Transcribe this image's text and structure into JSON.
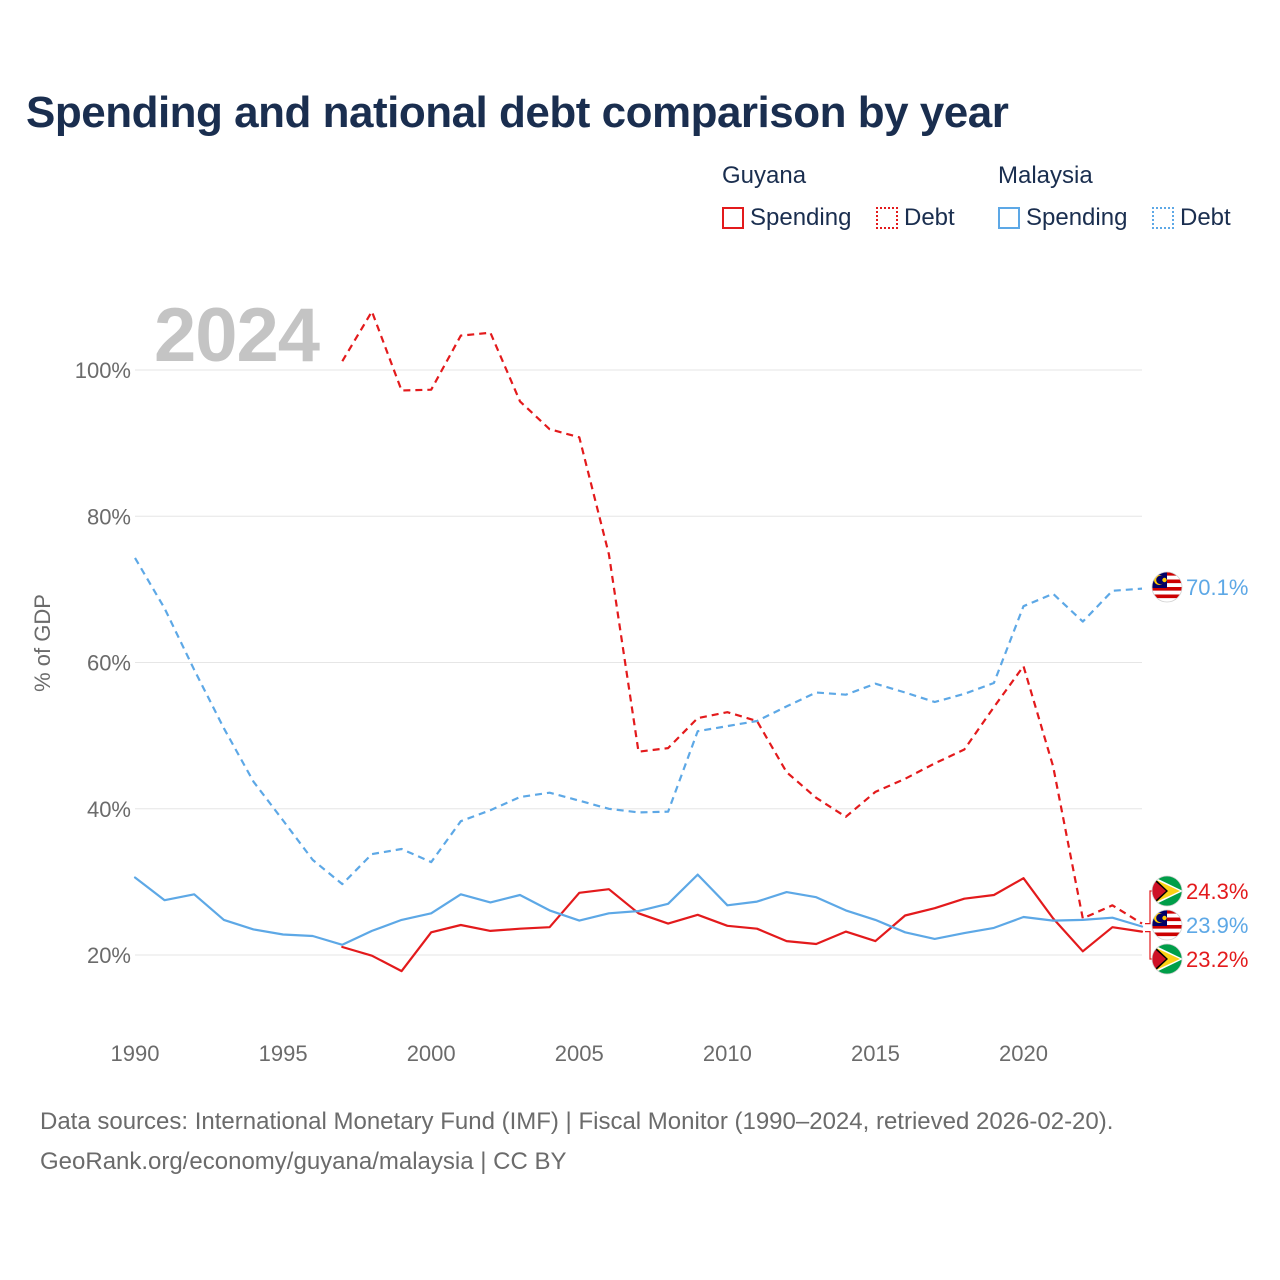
{
  "title": "Spending and national debt comparison by year",
  "year_label": "2024",
  "legend": {
    "guyana": {
      "title": "Guyana",
      "spending": "Spending",
      "debt": "Debt"
    },
    "malaysia": {
      "title": "Malaysia",
      "spending": "Spending",
      "debt": "Debt"
    }
  },
  "colors": {
    "guyana": "#e31a1c",
    "malaysia": "#5da8e6",
    "grid": "#e6e6e6"
  },
  "footer": {
    "line1": "Data sources: International Monetary Fund (IMF) | Fiscal Monitor (1990–2024, retrieved 2026-02-20).",
    "line2": "GeoRank.org/economy/guyana/malaysia | CC BY"
  },
  "chart_data": {
    "type": "line",
    "ylabel": "% of GDP",
    "xlabel": "",
    "xlim": [
      1990,
      2024
    ],
    "ylim": [
      10,
      110
    ],
    "yticks": [
      20,
      40,
      60,
      80,
      100
    ],
    "ytick_labels": [
      "20%",
      "40%",
      "60%",
      "80%",
      "100%"
    ],
    "xticks": [
      1990,
      1995,
      2000,
      2005,
      2010,
      2015,
      2020
    ],
    "xtick_labels": [
      "1990",
      "1995",
      "2000",
      "2005",
      "2010",
      "2015",
      "2020"
    ],
    "grid": true,
    "series": [
      {
        "name": "Guyana Spending",
        "country": "guyana",
        "style": "solid",
        "x": [
          1997,
          1998,
          1999,
          2000,
          2001,
          2002,
          2003,
          2004,
          2005,
          2006,
          2007,
          2008,
          2009,
          2010,
          2011,
          2012,
          2013,
          2014,
          2015,
          2016,
          2017,
          2018,
          2019,
          2020,
          2021,
          2022,
          2023,
          2024
        ],
        "values": [
          21.1,
          19.9,
          17.8,
          23.1,
          24.1,
          23.3,
          23.6,
          23.8,
          28.5,
          29.0,
          25.7,
          24.3,
          25.5,
          24.0,
          23.6,
          21.9,
          21.5,
          23.2,
          21.9,
          25.4,
          26.4,
          27.7,
          28.2,
          30.5,
          25.0,
          20.5,
          23.8,
          23.2
        ],
        "end_label": "23.2%"
      },
      {
        "name": "Guyana Debt",
        "country": "guyana",
        "style": "dashed",
        "x": [
          1997,
          1998,
          1999,
          2000,
          2001,
          2002,
          2003,
          2004,
          2005,
          2006,
          2007,
          2008,
          2009,
          2010,
          2011,
          2012,
          2013,
          2014,
          2015,
          2016,
          2017,
          2018,
          2019,
          2020,
          2021,
          2022,
          2023,
          2024
        ],
        "values": [
          101.2,
          108.0,
          97.2,
          97.3,
          104.7,
          105.1,
          95.7,
          91.9,
          90.8,
          74.8,
          47.8,
          48.3,
          52.4,
          53.2,
          52.0,
          45.0,
          41.5,
          38.9,
          42.3,
          44.1,
          46.2,
          48.1,
          53.9,
          59.5,
          45.8,
          25.0,
          26.8,
          24.3
        ],
        "end_label": "24.3%"
      },
      {
        "name": "Malaysia Spending",
        "country": "malaysia",
        "style": "solid",
        "x": [
          1990,
          1991,
          1992,
          1993,
          1994,
          1995,
          1996,
          1997,
          1998,
          1999,
          2000,
          2001,
          2002,
          2003,
          2004,
          2005,
          2006,
          2007,
          2008,
          2009,
          2010,
          2011,
          2012,
          2013,
          2014,
          2015,
          2016,
          2017,
          2018,
          2019,
          2020,
          2021,
          2022,
          2023,
          2024
        ],
        "values": [
          30.6,
          27.5,
          28.3,
          24.8,
          23.5,
          22.8,
          22.6,
          21.4,
          23.3,
          24.8,
          25.7,
          28.3,
          27.2,
          28.2,
          26.1,
          24.7,
          25.7,
          26.0,
          27.0,
          31.0,
          26.8,
          27.3,
          28.6,
          27.9,
          26.1,
          24.8,
          23.1,
          22.2,
          23.0,
          23.7,
          25.2,
          24.7,
          24.8,
          25.1,
          23.9
        ],
        "end_label": "23.9%"
      },
      {
        "name": "Malaysia Debt",
        "country": "malaysia",
        "style": "dashed",
        "x": [
          1990,
          1991,
          1992,
          1993,
          1994,
          1995,
          1996,
          1997,
          1998,
          1999,
          2000,
          2001,
          2002,
          2003,
          2004,
          2005,
          2006,
          2007,
          2008,
          2009,
          2010,
          2011,
          2012,
          2013,
          2014,
          2015,
          2016,
          2017,
          2018,
          2019,
          2020,
          2021,
          2022,
          2023,
          2024
        ],
        "values": [
          74.3,
          67.4,
          59.0,
          51.0,
          43.7,
          38.4,
          33.0,
          29.7,
          33.8,
          34.5,
          32.7,
          38.3,
          39.8,
          41.6,
          42.2,
          41.1,
          40.0,
          39.5,
          39.6,
          50.6,
          51.3,
          52.0,
          54.0,
          55.9,
          55.6,
          57.1,
          55.9,
          54.6,
          55.7,
          57.2,
          67.7,
          69.4,
          65.6,
          69.8,
          70.1
        ],
        "end_label": "70.1%"
      }
    ]
  }
}
